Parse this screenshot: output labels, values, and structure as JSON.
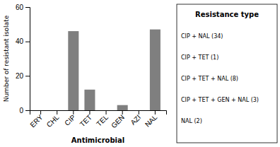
{
  "chart_data": {
    "type": "bar",
    "categories": [
      "ERY",
      "CHL",
      "CIP",
      "TET",
      "TEL",
      "GEN",
      "AZI",
      "NAL"
    ],
    "values": [
      0,
      0,
      46,
      12,
      0,
      3,
      0,
      47
    ],
    "color": "#7f7f7f",
    "xlabel": "Antimicrobial",
    "ylabel": "Number of resistant isolate",
    "ylim": [
      0,
      60
    ],
    "yticks": [
      0,
      20,
      40,
      60
    ],
    "grid": false,
    "legend_title": "Resistance type",
    "legend_entries": [
      "CIP + NAL (34)",
      "CIP + TET (1)",
      "CIP + TET + NAL (8)",
      "CIP + TET + GEN + NAL (3)",
      "NAL (2)"
    ]
  }
}
